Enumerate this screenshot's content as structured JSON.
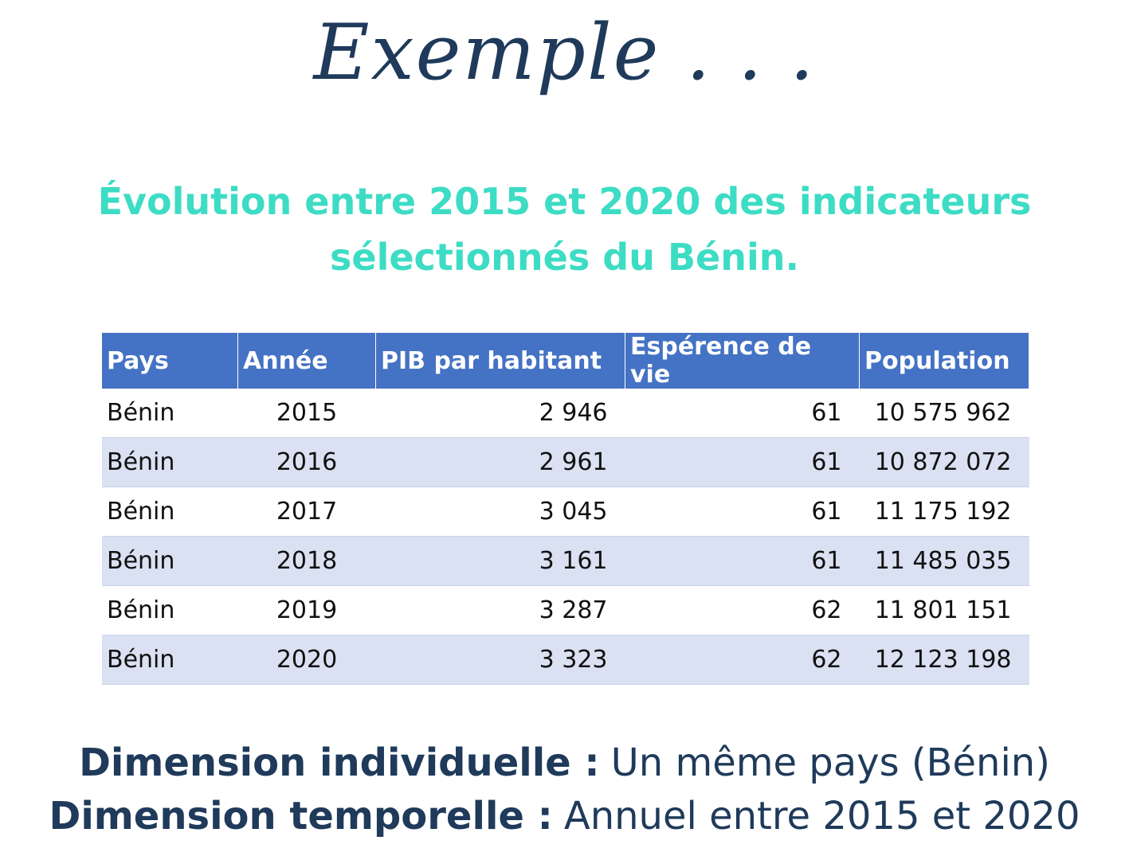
{
  "header": {
    "script_title": "Exemple . . .",
    "title_lines": [
      "Évolution entre 2015 et 2020 des indicateurs",
      "sélectionnés du Bénin."
    ]
  },
  "table": {
    "columns": [
      "Pays",
      "Année",
      "PIB par habitant",
      "Espérence de vie",
      "Population"
    ],
    "rows": [
      [
        "Bénin",
        "2015",
        "2 946",
        "61",
        "10 575 962"
      ],
      [
        "Bénin",
        "2016",
        "2 961",
        "61",
        "10 872 072"
      ],
      [
        "Bénin",
        "2017",
        "3 045",
        "61",
        "11 175 192"
      ],
      [
        "Bénin",
        "2018",
        "3 161",
        "61",
        "11 485 035"
      ],
      [
        "Bénin",
        "2019",
        "3 287",
        "62",
        "11 801 151"
      ],
      [
        "Bénin",
        "2020",
        "3 323",
        "62",
        "12 123 198"
      ]
    ]
  },
  "footer": {
    "lines": [
      {
        "label": "Dimension individuelle :",
        "text": "Un même pays (Bénin)"
      },
      {
        "label": "Dimension temporelle :",
        "text": "Annuel entre 2015 et 2020"
      }
    ]
  }
}
